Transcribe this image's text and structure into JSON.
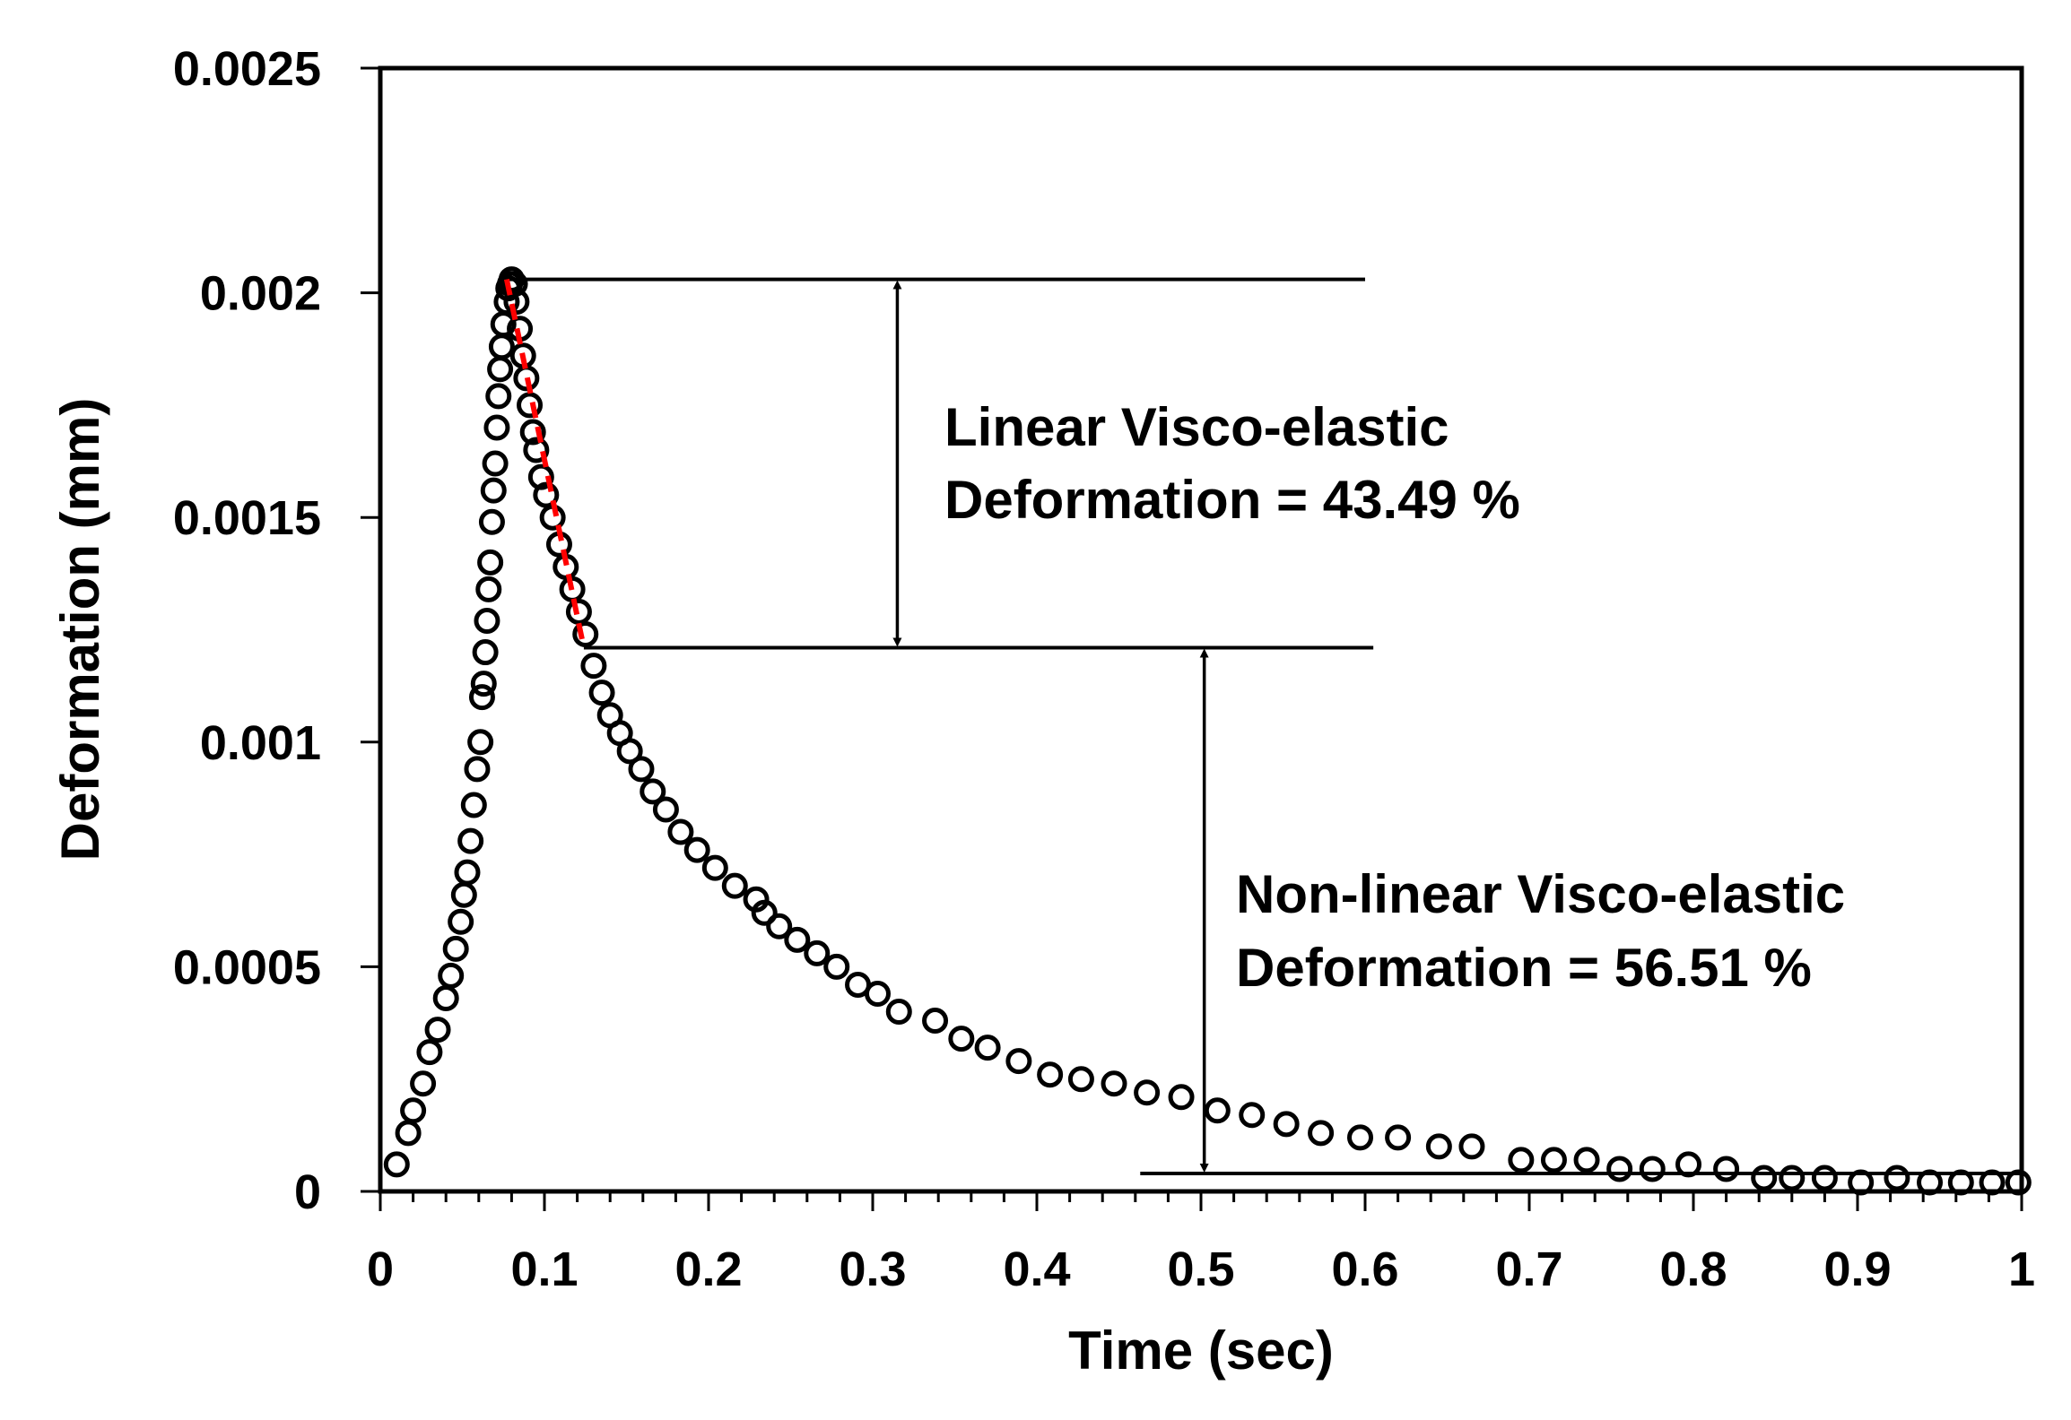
{
  "chart_data": {
    "type": "scatter",
    "title": "",
    "xlabel": "Time (sec)",
    "ylabel": "Deformation (mm)",
    "xlim": [
      0,
      1
    ],
    "ylim": [
      0,
      0.0025
    ],
    "x_ticks": [
      0,
      0.1,
      0.2,
      0.3,
      0.4,
      0.5,
      0.6,
      0.7,
      0.8,
      0.9,
      1
    ],
    "x_tick_labels": [
      "0",
      "0.1",
      "0.2",
      "0.3",
      "0.4",
      "0.5",
      "0.6",
      "0.7",
      "0.8",
      "0.9",
      "1"
    ],
    "y_ticks": [
      0,
      0.0005,
      0.001,
      0.0015,
      0.002,
      0.0025
    ],
    "y_tick_labels": [
      "0",
      "0.0005",
      "0.001",
      "0.0015",
      "0.002",
      "0.0025"
    ],
    "grid": false,
    "legend": "none",
    "series": [
      {
        "name": "Deformation",
        "marker": "open-circle",
        "color": "#000000",
        "x": [
          0.01,
          0.017,
          0.02,
          0.026,
          0.03,
          0.035,
          0.04,
          0.043,
          0.046,
          0.049,
          0.051,
          0.053,
          0.055,
          0.057,
          0.059,
          0.061,
          0.062,
          0.063,
          0.064,
          0.065,
          0.066,
          0.067,
          0.068,
          0.069,
          0.07,
          0.071,
          0.072,
          0.073,
          0.074,
          0.075,
          0.077,
          0.078,
          0.079,
          0.08,
          0.082,
          0.083,
          0.085,
          0.087,
          0.089,
          0.091,
          0.093,
          0.095,
          0.098,
          0.101,
          0.105,
          0.109,
          0.113,
          0.117,
          0.121,
          0.125,
          0.13,
          0.135,
          0.14,
          0.146,
          0.152,
          0.159,
          0.166,
          0.174,
          0.183,
          0.193,
          0.204,
          0.216,
          0.229,
          0.234,
          0.243,
          0.254,
          0.266,
          0.278,
          0.291,
          0.303,
          0.316,
          0.338,
          0.354,
          0.37,
          0.389,
          0.408,
          0.427,
          0.447,
          0.467,
          0.488,
          0.51,
          0.531,
          0.552,
          0.573,
          0.597,
          0.62,
          0.645,
          0.665,
          0.695,
          0.715,
          0.735,
          0.755,
          0.775,
          0.797,
          0.82,
          0.843,
          0.86,
          0.88,
          0.902,
          0.924,
          0.944,
          0.963,
          0.982,
          0.998
        ],
        "y": [
          6e-05,
          0.00013,
          0.00018,
          0.00024,
          0.00031,
          0.00036,
          0.00043,
          0.00048,
          0.00054,
          0.0006,
          0.00066,
          0.00071,
          0.00078,
          0.00086,
          0.00094,
          0.001,
          0.0011,
          0.00113,
          0.0012,
          0.00127,
          0.00134,
          0.0014,
          0.00149,
          0.00156,
          0.00162,
          0.0017,
          0.00177,
          0.00183,
          0.00188,
          0.00193,
          0.00198,
          0.00201,
          0.00202,
          0.00203,
          0.00202,
          0.00198,
          0.00192,
          0.00186,
          0.00181,
          0.00175,
          0.00169,
          0.00165,
          0.00159,
          0.00155,
          0.0015,
          0.00144,
          0.00139,
          0.00134,
          0.00129,
          0.00124,
          0.00117,
          0.00111,
          0.00106,
          0.00102,
          0.00098,
          0.00094,
          0.00089,
          0.00085,
          0.0008,
          0.00076,
          0.00072,
          0.00068,
          0.00065,
          0.00062,
          0.00059,
          0.00056,
          0.00053,
          0.0005,
          0.00046,
          0.00044,
          0.0004,
          0.00038,
          0.00034,
          0.00032,
          0.00029,
          0.00026,
          0.00025,
          0.00024,
          0.00022,
          0.00021,
          0.00018,
          0.00017,
          0.00015,
          0.00013,
          0.00012,
          0.00012,
          0.0001,
          0.0001,
          7e-05,
          7e-05,
          7e-05,
          5e-05,
          5e-05,
          6e-05,
          5e-05,
          3e-05,
          3e-05,
          3e-05,
          2e-05,
          3e-05,
          2e-05,
          2e-05,
          2e-05,
          2e-05
        ]
      },
      {
        "name": "Linear fit",
        "style": "dashed-line",
        "color": "#ff0000",
        "x": [
          0.077,
          0.124
        ],
        "y": [
          0.00203,
          0.00121
        ]
      }
    ],
    "reference_lines": [
      {
        "name": "peak-level",
        "y": 0.00203,
        "x_start": 0.077,
        "x_end": 0.6
      },
      {
        "name": "transition-level",
        "y": 0.00121,
        "x_start": 0.124,
        "x_end": 0.605
      },
      {
        "name": "baseline-level",
        "y": 4e-05,
        "x_start": 0.463,
        "x_end": 1.0
      }
    ],
    "arrows": [
      {
        "name": "linear-range-arrow",
        "x": 0.315,
        "y_top": 0.00203,
        "y_bottom": 0.00121
      },
      {
        "name": "nonlinear-range-arrow",
        "x": 0.502,
        "y_top": 0.00121,
        "y_bottom": 4e-05
      }
    ],
    "annotations": [
      {
        "name": "linear-annotation",
        "lines": [
          "Linear Visco-elastic",
          "Deformation = 43.49 %"
        ]
      },
      {
        "name": "nonlinear-annotation",
        "lines": [
          "Non-linear Visco-elastic",
          "Deformation = 56.51 %"
        ]
      }
    ]
  }
}
